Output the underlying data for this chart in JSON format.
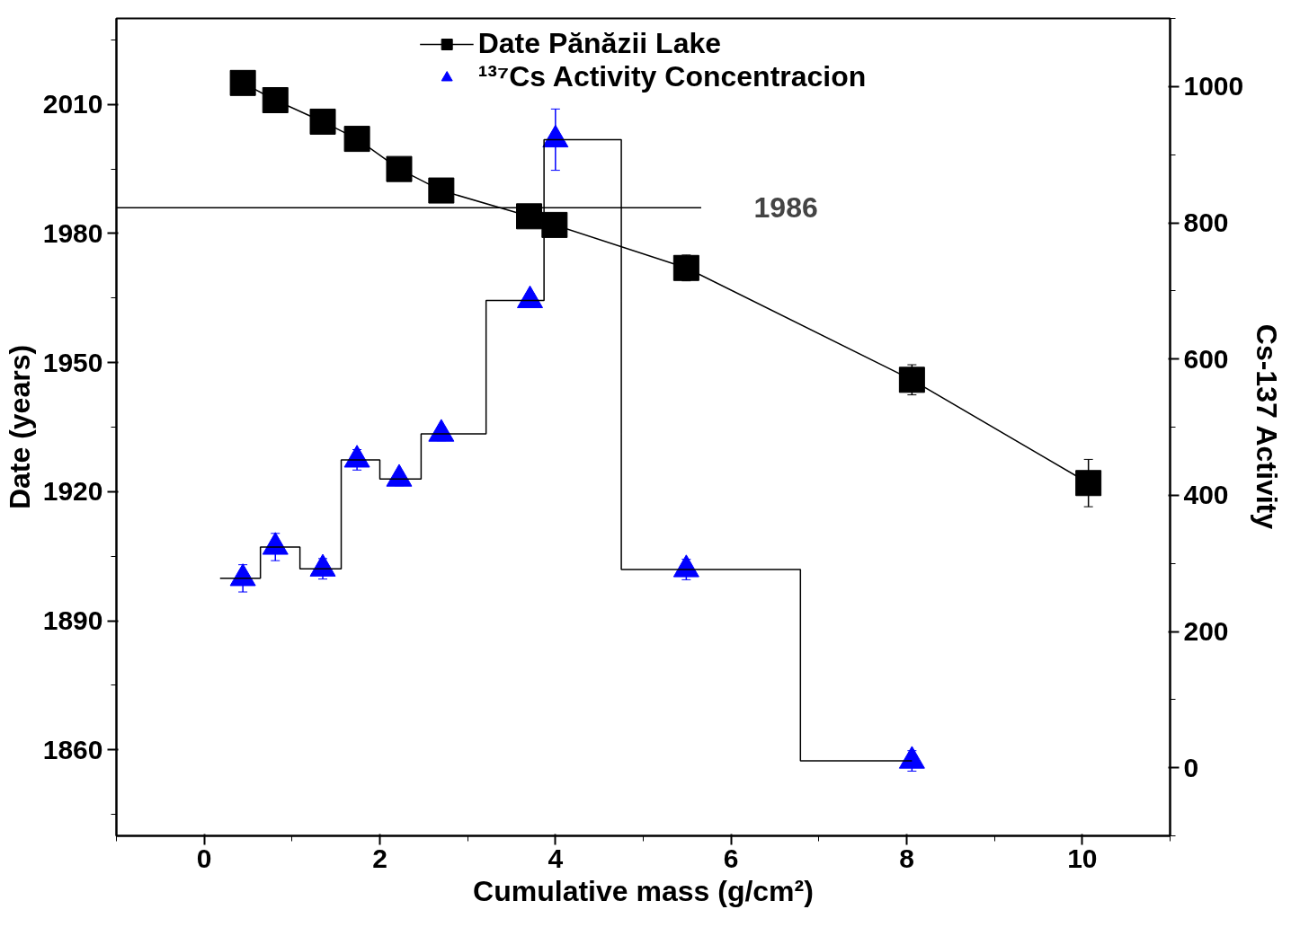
{
  "chart_data": {
    "type": "scatter",
    "xlabel": "Cumulative mass (g/cm²)",
    "ylabel": "Date (years)",
    "y2label": "Cs-137 Activity",
    "xlim": [
      -1,
      11
    ],
    "xticks": [
      0,
      2,
      4,
      6,
      8,
      10
    ],
    "ylim": [
      1840,
      2030
    ],
    "yticks": [
      1860,
      1890,
      1920,
      1950,
      1980,
      2010
    ],
    "y2lim": [
      -100,
      1100
    ],
    "y2ticks": [
      0,
      200,
      400,
      600,
      800,
      1000
    ],
    "legend": "top",
    "grid": false,
    "series": [
      {
        "name": "Date Pănăzii Lake",
        "type": "line",
        "marker": "square",
        "color": "#000000",
        "x": [
          0.44,
          0.81,
          1.35,
          1.74,
          2.22,
          2.7,
          3.7,
          3.99,
          5.49,
          8.06,
          10.07
        ],
        "values": [
          2015,
          2011,
          2006,
          2002,
          1995,
          1990,
          1984,
          1982,
          1972,
          1946,
          1922
        ],
        "errors": [
          null,
          null,
          null,
          null,
          null,
          null,
          null,
          null,
          3,
          3.5,
          5.5
        ]
      },
      {
        "name": "¹³⁷Cs Activity Concentracion",
        "marker": "triangle",
        "axis": "y2",
        "color": "#0000ff",
        "x": [
          0.44,
          0.81,
          1.35,
          1.74,
          2.22,
          2.7,
          3.71,
          4.0,
          5.49,
          8.06
        ],
        "values": [
          278,
          324,
          292,
          452,
          424,
          490,
          686,
          922,
          291,
          10
        ],
        "errors": [
          20,
          20,
          15,
          15,
          10,
          10,
          10,
          45,
          15,
          15
        ]
      },
      {
        "type": "step",
        "axis": "y2",
        "color": "#000000",
        "marker": "none",
        "x": [
          0.18,
          0.64,
          1.09,
          1.56,
          2.0,
          2.47,
          3.21,
          3.87,
          4.75,
          6.79,
          8.06
        ],
        "values": [
          278,
          324,
          292,
          452,
          424,
          490,
          686,
          922,
          291,
          10,
          10
        ]
      }
    ],
    "ref_lines": [
      {
        "axis": "y",
        "value": 1986,
        "label": "1986",
        "color": "#000000"
      }
    ]
  }
}
